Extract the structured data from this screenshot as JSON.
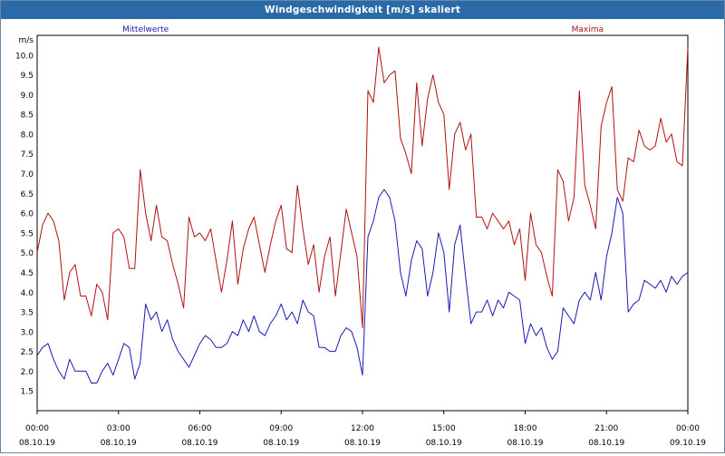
{
  "window": {
    "title": "Windgeschwindigkeit [m/s] skaliert"
  },
  "chart_data": {
    "type": "line",
    "ylabel": "m/s",
    "ylim": [
      1.0,
      10.5
    ],
    "yticks": [
      "1.5",
      "2.0",
      "2.5",
      "3.0",
      "3.5",
      "4.0",
      "4.5",
      "5.0",
      "5.5",
      "6.0",
      "6.5",
      "7.0",
      "7.5",
      "8.0",
      "8.5",
      "9.0",
      "9.5",
      "10.0"
    ],
    "xlim": [
      0,
      24
    ],
    "xticks": [
      {
        "time": "00:00",
        "date": "08.10.19"
      },
      {
        "time": "03:00",
        "date": "08.10.19"
      },
      {
        "time": "06:00",
        "date": "08.10.19"
      },
      {
        "time": "09:00",
        "date": "08.10.19"
      },
      {
        "time": "12:00",
        "date": "08.10.19"
      },
      {
        "time": "15:00",
        "date": "08.10.19"
      },
      {
        "time": "18:00",
        "date": "08.10.19"
      },
      {
        "time": "21:00",
        "date": "08.10.19"
      },
      {
        "time": "00:00",
        "date": "09.10.19"
      }
    ],
    "grid": true,
    "series": [
      {
        "name": "Mittelwerte",
        "color": "#1a1ab4",
        "x": [
          0,
          0.2,
          0.4,
          0.6,
          0.8,
          1,
          1.2,
          1.4,
          1.6,
          1.8,
          2,
          2.2,
          2.4,
          2.6,
          2.8,
          3,
          3.2,
          3.4,
          3.6,
          3.8,
          4,
          4.2,
          4.4,
          4.6,
          4.8,
          5,
          5.2,
          5.4,
          5.6,
          5.8,
          6,
          6.2,
          6.4,
          6.6,
          6.8,
          7,
          7.2,
          7.4,
          7.6,
          7.8,
          8,
          8.2,
          8.4,
          8.6,
          8.8,
          9,
          9.2,
          9.4,
          9.6,
          9.8,
          10,
          10.2,
          10.4,
          10.6,
          10.8,
          11,
          11.2,
          11.4,
          11.6,
          11.8,
          12,
          12.2,
          12.4,
          12.6,
          12.8,
          13,
          13.2,
          13.4,
          13.6,
          13.8,
          14,
          14.2,
          14.4,
          14.6,
          14.8,
          15,
          15.2,
          15.4,
          15.6,
          15.8,
          16,
          16.2,
          16.4,
          16.6,
          16.8,
          17,
          17.2,
          17.4,
          17.6,
          17.8,
          18,
          18.2,
          18.4,
          18.6,
          18.8,
          19,
          19.2,
          19.4,
          19.6,
          19.8,
          20,
          20.2,
          20.4,
          20.6,
          20.8,
          21,
          21.2,
          21.4,
          21.6,
          21.8,
          22,
          22.2,
          22.4,
          22.6,
          22.8,
          23,
          23.2,
          23.4,
          23.6,
          23.8,
          24
        ],
        "values": [
          2.4,
          2.6,
          2.7,
          2.3,
          2.0,
          1.8,
          2.3,
          2.0,
          2.0,
          2.0,
          1.7,
          1.7,
          2.0,
          2.2,
          1.9,
          2.3,
          2.7,
          2.6,
          1.8,
          2.2,
          3.7,
          3.3,
          3.5,
          3.0,
          3.3,
          2.8,
          2.5,
          2.3,
          2.1,
          2.4,
          2.7,
          2.9,
          2.8,
          2.6,
          2.6,
          2.7,
          3.0,
          2.9,
          3.3,
          3.0,
          3.4,
          3.0,
          2.9,
          3.2,
          3.4,
          3.7,
          3.3,
          3.5,
          3.2,
          3.8,
          3.5,
          3.4,
          2.6,
          2.6,
          2.5,
          2.5,
          2.9,
          3.1,
          3.0,
          2.6,
          1.9,
          5.4,
          5.8,
          6.4,
          6.6,
          6.4,
          5.8,
          4.5,
          3.9,
          4.8,
          5.3,
          5.1,
          3.9,
          4.5,
          5.5,
          5.0,
          3.5,
          5.2,
          5.7,
          4.4,
          3.2,
          3.5,
          3.5,
          3.8,
          3.4,
          3.8,
          3.6,
          4.0,
          3.9,
          3.8,
          2.7,
          3.2,
          2.9,
          3.1,
          2.6,
          2.3,
          2.5,
          3.6,
          3.4,
          3.2,
          3.8,
          4.0,
          3.8,
          4.5,
          3.8,
          4.9,
          5.5,
          6.4,
          6.0,
          3.5,
          3.7,
          3.8,
          4.3,
          4.2,
          4.1,
          4.3,
          4.0,
          4.4,
          4.2,
          4.4,
          4.5
        ]
      },
      {
        "name": "Maxima",
        "color": "#b01010",
        "x": [
          0,
          0.2,
          0.4,
          0.6,
          0.8,
          1,
          1.2,
          1.4,
          1.6,
          1.8,
          2,
          2.2,
          2.4,
          2.6,
          2.8,
          3,
          3.2,
          3.4,
          3.6,
          3.8,
          4,
          4.2,
          4.4,
          4.6,
          4.8,
          5,
          5.2,
          5.4,
          5.6,
          5.8,
          6,
          6.2,
          6.4,
          6.6,
          6.8,
          7,
          7.2,
          7.4,
          7.6,
          7.8,
          8,
          8.2,
          8.4,
          8.6,
          8.8,
          9,
          9.2,
          9.4,
          9.6,
          9.8,
          10,
          10.2,
          10.4,
          10.6,
          10.8,
          11,
          11.2,
          11.4,
          11.6,
          11.8,
          12,
          12.2,
          12.4,
          12.6,
          12.8,
          13,
          13.2,
          13.4,
          13.6,
          13.8,
          14,
          14.2,
          14.4,
          14.6,
          14.8,
          15,
          15.2,
          15.4,
          15.6,
          15.8,
          16,
          16.2,
          16.4,
          16.6,
          16.8,
          17,
          17.2,
          17.4,
          17.6,
          17.8,
          18,
          18.2,
          18.4,
          18.6,
          18.8,
          19,
          19.2,
          19.4,
          19.6,
          19.8,
          20,
          20.2,
          20.4,
          20.6,
          20.8,
          21,
          21.2,
          21.4,
          21.6,
          21.8,
          22,
          22.2,
          22.4,
          22.6,
          22.8,
          23,
          23.2,
          23.4,
          23.6,
          23.8,
          24
        ],
        "values": [
          5.0,
          5.7,
          6.0,
          5.8,
          5.3,
          3.8,
          4.5,
          4.7,
          3.9,
          3.9,
          3.4,
          4.2,
          4.0,
          3.3,
          5.5,
          5.6,
          5.4,
          4.6,
          4.6,
          7.1,
          6.0,
          5.3,
          6.2,
          5.4,
          5.3,
          4.7,
          4.2,
          3.6,
          5.9,
          5.4,
          5.5,
          5.3,
          5.6,
          4.8,
          4.0,
          4.8,
          5.8,
          4.2,
          5.1,
          5.6,
          5.9,
          5.2,
          4.5,
          5.2,
          5.8,
          6.2,
          5.1,
          5.0,
          6.7,
          5.6,
          4.7,
          5.2,
          4.0,
          4.9,
          5.4,
          3.9,
          5.0,
          6.1,
          5.5,
          4.9,
          3.1,
          9.1,
          8.8,
          10.2,
          9.3,
          9.5,
          9.6,
          7.9,
          7.5,
          7.0,
          9.3,
          7.7,
          8.9,
          9.5,
          8.8,
          8.5,
          6.6,
          8.0,
          8.3,
          7.6,
          8.0,
          5.9,
          5.9,
          5.6,
          6.0,
          5.8,
          5.6,
          5.8,
          5.2,
          5.6,
          4.3,
          6.0,
          5.2,
          5.0,
          4.4,
          3.9,
          7.1,
          6.8,
          5.8,
          6.4,
          9.1,
          6.7,
          6.2,
          5.6,
          8.2,
          8.8,
          9.2,
          6.6,
          6.3,
          7.4,
          7.3,
          8.1,
          7.7,
          7.6,
          7.7,
          8.4,
          7.8,
          8.0,
          7.3,
          7.2,
          10.2
        ]
      }
    ]
  }
}
